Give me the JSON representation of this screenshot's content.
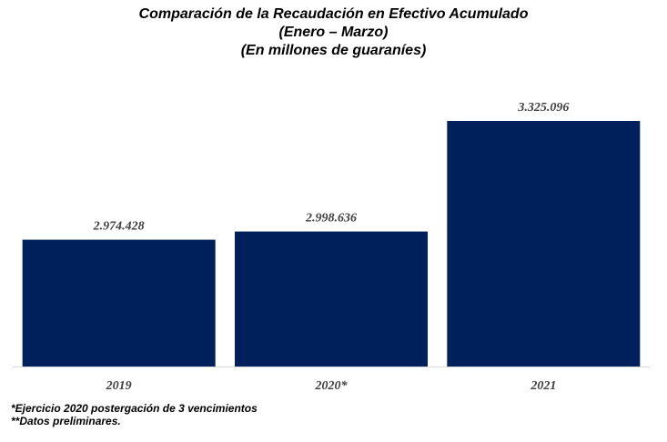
{
  "chart_data": {
    "type": "bar",
    "title": "Comparación de la Recaudación en Efectivo Acumulado",
    "subtitle": "(Enero – Marzo)",
    "unit_label": "(En millones de guaraníes)",
    "categories": [
      "2019",
      "2020*",
      "2021"
    ],
    "values": [
      2974428,
      2998636,
      3325096
    ],
    "value_labels": [
      "2.974.428",
      "2.998.636",
      "3.325.096"
    ],
    "bar_color": "#00205B",
    "axis_color": "#D9D9D9",
    "grid": false,
    "legend": "none"
  },
  "notes": [
    "*Ejercicio 2020 postergación de 3 vencimientos",
    "**Datos preliminares."
  ]
}
